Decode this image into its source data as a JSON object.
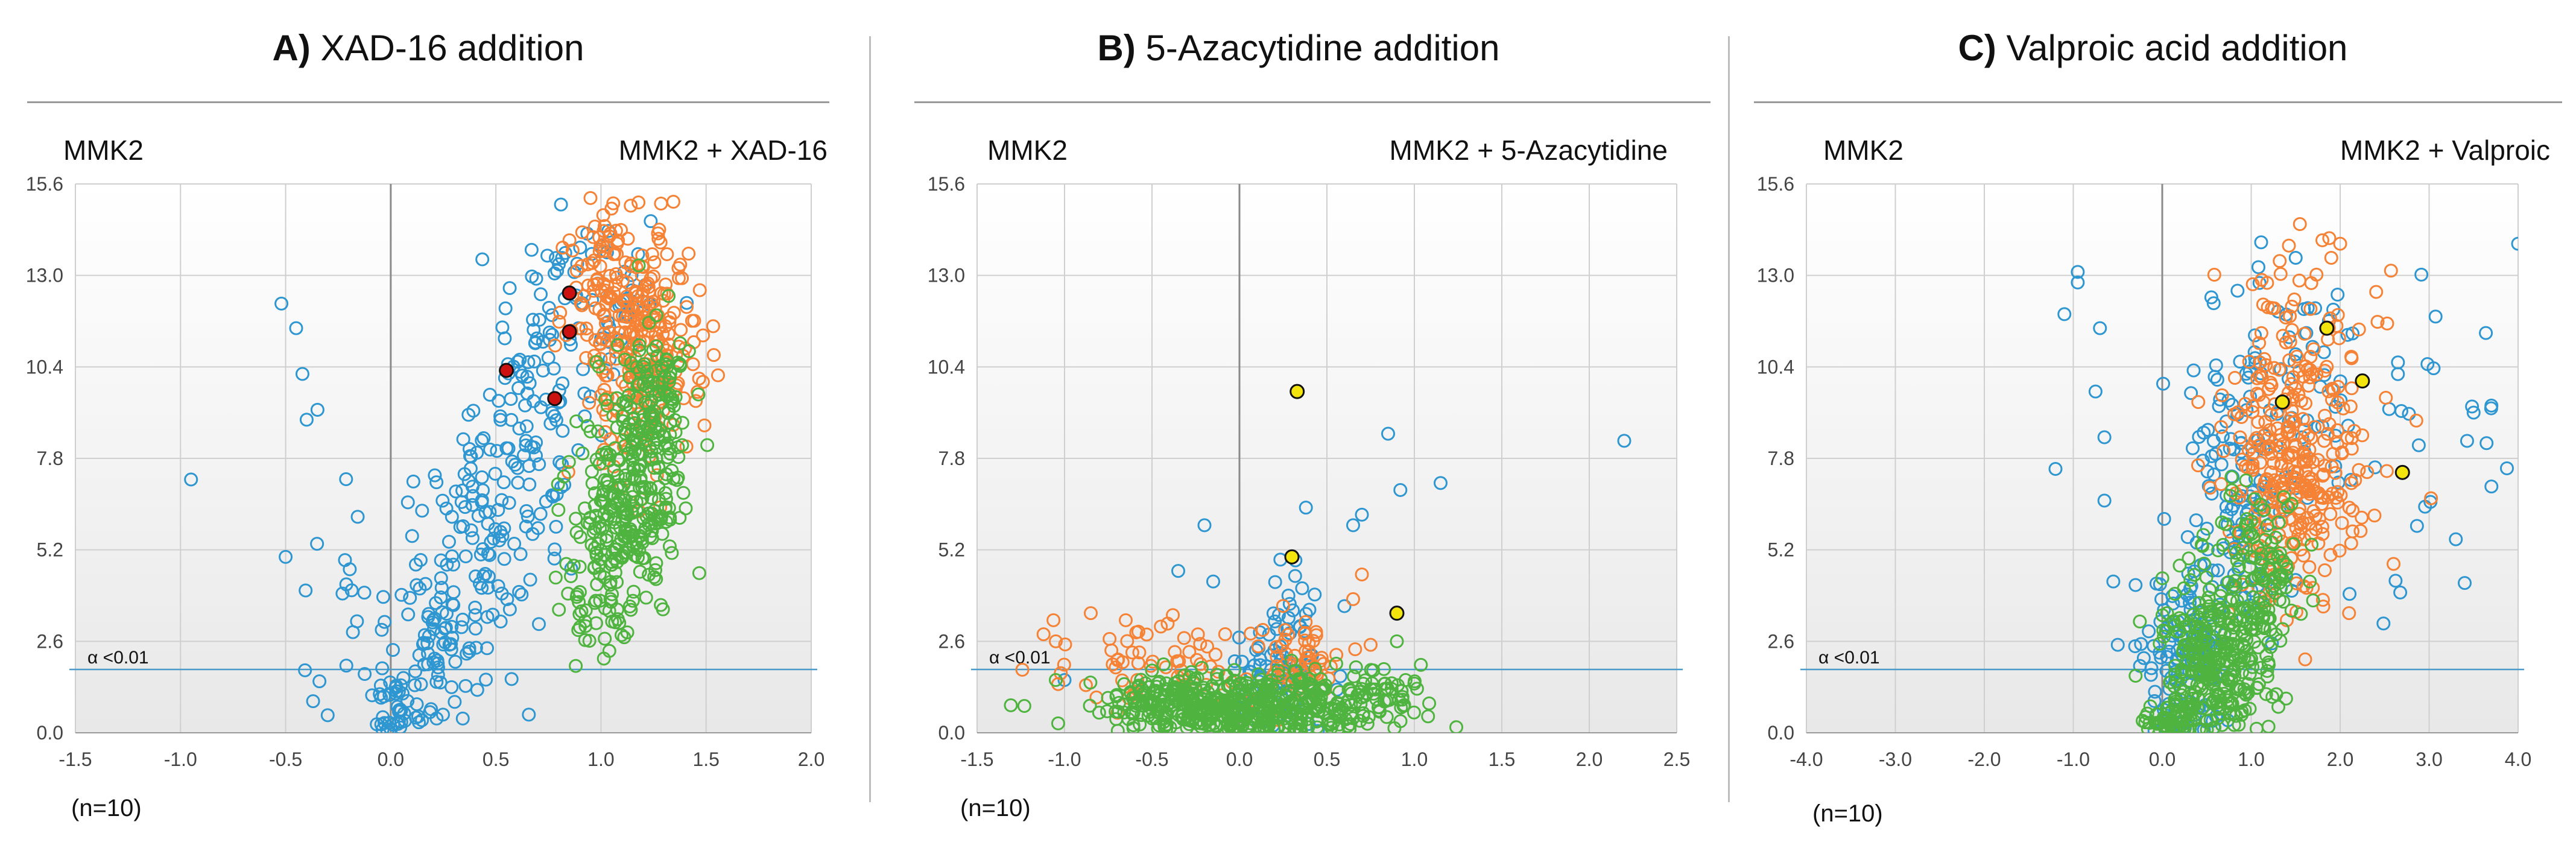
{
  "figure": {
    "n_label": "(n=10)",
    "threshold_label": "α <0.01"
  },
  "panels": [
    {
      "letter": "A)",
      "title": "XAD-16 addition",
      "left_label": "MMK2",
      "right_label": "MMK2 + XAD-16"
    },
    {
      "letter": "B)",
      "title": "5-Azacytidine addition",
      "left_label": "MMK2",
      "right_label": "MMK2 + 5-Azacytidine"
    },
    {
      "letter": "C)",
      "title": "Valproic acid addition",
      "left_label": "MMK2",
      "right_label": "MMK2 + Valproic"
    }
  ],
  "chart_data": [
    {
      "type": "scatter",
      "title": "A) XAD-16 addition",
      "xlim": [
        -1.5,
        2.0
      ],
      "ylim": [
        0.0,
        15.6
      ],
      "x_ticks": [
        -1.5,
        -1.0,
        -0.5,
        0.0,
        0.5,
        1.0,
        1.5,
        2.0
      ],
      "x_tick_labels": [
        "-1.5",
        "-1.0",
        "-0.5",
        "0.0",
        "0.5",
        "1.0",
        "1.5",
        "2.0"
      ],
      "y_ticks": [
        0.0,
        2.6,
        5.2,
        7.8,
        10.4,
        13.0,
        15.6
      ],
      "y_tick_labels": [
        "0.0",
        "2.6",
        "5.2",
        "7.8",
        "10.4",
        "13.0",
        "15.6"
      ],
      "threshold_y": 1.8,
      "series": [
        {
          "name": "blue",
          "color": "#2e96d0",
          "marker": "open-circle",
          "seed": 11,
          "clusters": [
            {
              "n": 40,
              "cx": 0.05,
              "cy": 0.7,
              "sx": 0.07,
              "sy": 0.5
            },
            {
              "n": 90,
              "cx": 0.25,
              "cy": 2.8,
              "sx": 0.13,
              "sy": 1.2
            },
            {
              "n": 110,
              "cx": 0.5,
              "cy": 6.5,
              "sx": 0.16,
              "sy": 1.6
            },
            {
              "n": 80,
              "cx": 0.72,
              "cy": 10.5,
              "sx": 0.14,
              "sy": 1.6
            },
            {
              "n": 35,
              "cx": 1.05,
              "cy": 12.2,
              "sx": 0.12,
              "sy": 1.0
            },
            {
              "n": 18,
              "cx": -0.22,
              "cy": 4.6,
              "sx": 0.1,
              "sy": 1.8
            }
          ],
          "points": [
            [
              -0.95,
              7.2
            ],
            [
              -0.52,
              12.2
            ],
            [
              -0.45,
              11.5
            ],
            [
              -0.42,
              10.2
            ],
            [
              -0.4,
              8.9
            ],
            [
              -0.5,
              5.0
            ],
            [
              -0.3,
              0.5
            ],
            [
              0.0,
              0.1
            ]
          ]
        },
        {
          "name": "orange",
          "color": "#f58235",
          "marker": "open-circle",
          "seed": 23,
          "clusters": [
            {
              "n": 280,
              "cx": 1.18,
              "cy": 11.0,
              "sx": 0.13,
              "sy": 1.6
            },
            {
              "n": 40,
              "cx": 0.95,
              "cy": 13.2,
              "sx": 0.1,
              "sy": 1.0
            }
          ],
          "points": [
            [
              0.95,
              15.2
            ],
            [
              1.05,
              14.9
            ],
            [
              0.85,
              14.0
            ]
          ]
        },
        {
          "name": "green",
          "color": "#4fb43f",
          "marker": "open-circle",
          "seed": 37,
          "clusters": [
            {
              "n": 230,
              "cx": 1.12,
              "cy": 6.2,
              "sx": 0.12,
              "sy": 1.4
            },
            {
              "n": 150,
              "cx": 1.25,
              "cy": 9.0,
              "sx": 0.09,
              "sy": 1.4
            },
            {
              "n": 30,
              "cx": 0.95,
              "cy": 3.8,
              "sx": 0.07,
              "sy": 0.6
            }
          ],
          "points": [
            [
              0.88,
              1.9
            ],
            [
              0.8,
              3.5
            ],
            [
              0.9,
              3.0
            ]
          ]
        },
        {
          "name": "highlighted",
          "color": "#cc1111",
          "marker": "filled-circle",
          "points": [
            [
              0.55,
              10.3
            ],
            [
              0.78,
              9.5
            ],
            [
              0.85,
              11.4
            ],
            [
              0.85,
              12.5
            ]
          ]
        }
      ]
    },
    {
      "type": "scatter",
      "title": "B) 5-Azacytidine addition",
      "xlim": [
        -1.5,
        2.5
      ],
      "ylim": [
        0.0,
        15.6
      ],
      "x_ticks": [
        -1.5,
        -1.0,
        -0.5,
        0.0,
        0.5,
        1.0,
        1.5,
        2.0,
        2.5
      ],
      "x_tick_labels": [
        "-1.5",
        "-1.0",
        "-0.5",
        "0.0",
        "0.5",
        "1.0",
        "1.5",
        "2.0",
        "2.5"
      ],
      "y_ticks": [
        0.0,
        2.6,
        5.2,
        7.8,
        10.4,
        13.0,
        15.6
      ],
      "y_tick_labels": [
        "0.0",
        "2.6",
        "5.2",
        "7.8",
        "10.4",
        "13.0",
        "15.6"
      ],
      "threshold_y": 1.8,
      "series": [
        {
          "name": "blue",
          "color": "#2e96d0",
          "marker": "open-circle",
          "seed": 51,
          "clusters": [
            {
              "n": 70,
              "cx": 0.18,
              "cy": 1.4,
              "sx": 0.13,
              "sy": 0.7
            },
            {
              "n": 20,
              "cx": 0.32,
              "cy": 3.0,
              "sx": 0.1,
              "sy": 0.8
            }
          ],
          "points": [
            [
              -0.2,
              5.9
            ],
            [
              -0.35,
              4.6
            ],
            [
              -0.15,
              4.3
            ],
            [
              0.28,
              3.9
            ],
            [
              0.32,
              4.9
            ],
            [
              0.38,
              6.4
            ],
            [
              0.65,
              5.9
            ],
            [
              0.7,
              6.2
            ],
            [
              0.85,
              8.5
            ],
            [
              0.92,
              6.9
            ],
            [
              1.15,
              7.1
            ],
            [
              2.2,
              8.3
            ],
            [
              -1.0,
              1.5
            ],
            [
              0.4,
              3.5
            ],
            [
              0.6,
              3.6
            ]
          ]
        },
        {
          "name": "orange",
          "color": "#f58235",
          "marker": "open-circle",
          "seed": 63,
          "clusters": [
            {
              "n": 60,
              "cx": -0.45,
              "cy": 1.9,
              "sx": 0.25,
              "sy": 0.6
            },
            {
              "n": 55,
              "cx": 0.35,
              "cy": 2.1,
              "sx": 0.13,
              "sy": 0.6
            }
          ],
          "points": [
            [
              -1.12,
              2.8
            ],
            [
              -1.05,
              2.6
            ],
            [
              -0.85,
              3.4
            ],
            [
              -0.65,
              3.2
            ],
            [
              0.7,
              4.5
            ],
            [
              0.65,
              3.8
            ],
            [
              0.75,
              2.5
            ]
          ]
        },
        {
          "name": "green",
          "color": "#4fb43f",
          "marker": "open-circle",
          "seed": 77,
          "clusters": [
            {
              "n": 380,
              "cx": 0.0,
              "cy": 0.7,
              "sx": 0.35,
              "sy": 0.45
            },
            {
              "n": 120,
              "cx": 0.55,
              "cy": 1.0,
              "sx": 0.25,
              "sy": 0.45
            },
            {
              "n": 60,
              "cx": -0.45,
              "cy": 1.1,
              "sx": 0.15,
              "sy": 0.4
            }
          ],
          "points": [
            [
              -1.05,
              1.5
            ],
            [
              0.95,
              1.5
            ],
            [
              1.0,
              1.4
            ],
            [
              0.9,
              2.6
            ]
          ]
        },
        {
          "name": "highlighted",
          "color": "#f2e40c",
          "marker": "filled-circle",
          "points": [
            [
              0.33,
              9.7
            ],
            [
              0.3,
              5.0
            ],
            [
              0.9,
              3.4
            ]
          ]
        }
      ]
    },
    {
      "type": "scatter",
      "title": "C) Valproic acid addition",
      "xlim": [
        -4.0,
        4.0
      ],
      "ylim": [
        0.0,
        15.6
      ],
      "x_ticks": [
        -4.0,
        -3.0,
        -2.0,
        -1.0,
        0.0,
        1.0,
        2.0,
        3.0,
        4.0
      ],
      "x_tick_labels": [
        "-4.0",
        "-3.0",
        "-2.0",
        "-1.0",
        "0.0",
        "1.0",
        "2.0",
        "3.0",
        "4.0"
      ],
      "y_ticks": [
        0.0,
        2.6,
        5.2,
        7.8,
        10.4,
        13.0,
        15.6
      ],
      "y_tick_labels": [
        "0.0",
        "2.6",
        "5.2",
        "7.8",
        "10.4",
        "13.0",
        "15.6"
      ],
      "threshold_y": 1.8,
      "series": [
        {
          "name": "blue",
          "color": "#2e96d0",
          "marker": "open-circle",
          "seed": 91,
          "clusters": [
            {
              "n": 120,
              "cx": 0.3,
              "cy": 2.2,
              "sx": 0.25,
              "sy": 1.3
            },
            {
              "n": 100,
              "cx": 0.85,
              "cy": 6.8,
              "sx": 0.3,
              "sy": 2.0
            },
            {
              "n": 60,
              "cx": 1.5,
              "cy": 10.5,
              "sx": 0.5,
              "sy": 1.8
            },
            {
              "n": 30,
              "cx": 2.8,
              "cy": 8.0,
              "sx": 0.6,
              "sy": 2.0
            }
          ],
          "points": [
            [
              -0.95,
              13.1
            ],
            [
              -0.95,
              12.8
            ],
            [
              -1.1,
              11.9
            ],
            [
              -0.7,
              11.5
            ],
            [
              -0.75,
              9.7
            ],
            [
              -0.65,
              8.4
            ],
            [
              -1.2,
              7.5
            ],
            [
              -0.65,
              6.6
            ],
            [
              -0.55,
              4.3
            ],
            [
              -0.3,
              4.2
            ],
            [
              -0.5,
              2.5
            ],
            [
              -0.25,
              1.9
            ],
            [
              3.5,
              9.1
            ],
            [
              3.7,
              9.3
            ],
            [
              3.7,
              7.0
            ],
            [
              3.3,
              5.5
            ],
            [
              4.0,
              13.9
            ],
            [
              1.5,
              13.5
            ]
          ]
        },
        {
          "name": "orange",
          "color": "#f58235",
          "marker": "open-circle",
          "seed": 103,
          "clusters": [
            {
              "n": 250,
              "cx": 1.45,
              "cy": 7.0,
              "sx": 0.35,
              "sy": 1.6
            },
            {
              "n": 90,
              "cx": 1.6,
              "cy": 10.5,
              "sx": 0.45,
              "sy": 1.6
            }
          ],
          "points": [
            [
              1.8,
              14.0
            ],
            [
              2.0,
              13.9
            ],
            [
              1.9,
              13.5
            ],
            [
              2.1,
              3.4
            ],
            [
              2.6,
              4.8
            ],
            [
              1.4,
              3.2
            ]
          ]
        },
        {
          "name": "green",
          "color": "#4fb43f",
          "marker": "open-circle",
          "seed": 117,
          "clusters": [
            {
              "n": 300,
              "cx": 0.6,
              "cy": 2.0,
              "sx": 0.3,
              "sy": 1.1
            },
            {
              "n": 120,
              "cx": 1.1,
              "cy": 4.3,
              "sx": 0.25,
              "sy": 1.2
            },
            {
              "n": 50,
              "cx": 0.1,
              "cy": 0.4,
              "sx": 0.15,
              "sy": 0.25
            }
          ],
          "points": []
        },
        {
          "name": "highlighted",
          "color": "#f2e40c",
          "marker": "filled-circle",
          "points": [
            [
              1.35,
              9.4
            ],
            [
              1.85,
              11.5
            ],
            [
              2.25,
              10.0
            ],
            [
              2.7,
              7.4
            ]
          ]
        }
      ]
    }
  ]
}
